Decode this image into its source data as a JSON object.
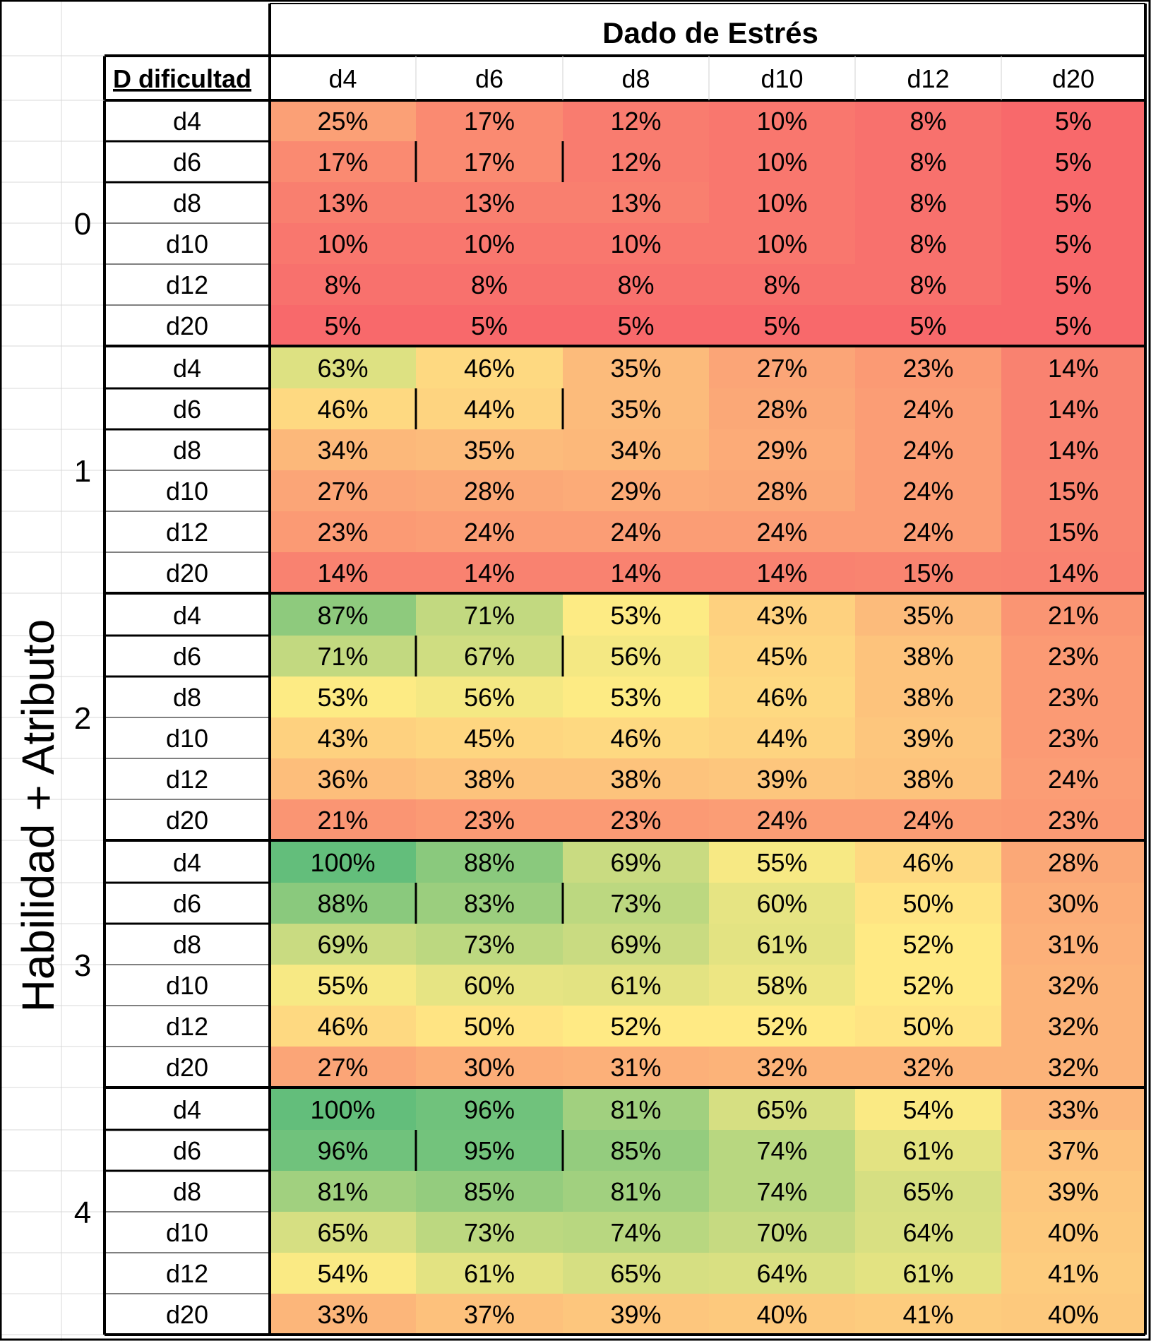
{
  "header": {
    "title": "Dado de Estrés",
    "corner_label": "D dificultad",
    "side_label": "Habilidad + Atributo"
  },
  "columns": [
    "d4",
    "d6",
    "d8",
    "d10",
    "d12",
    "d20"
  ],
  "groups": [
    {
      "label": "0",
      "rows": [
        {
          "label": "d4",
          "values": [
            "25%",
            "17%",
            "12%",
            "10%",
            "8%",
            "5%"
          ]
        },
        {
          "label": "d6",
          "values": [
            "17%",
            "17%",
            "12%",
            "10%",
            "8%",
            "5%"
          ]
        },
        {
          "label": "d8",
          "values": [
            "13%",
            "13%",
            "13%",
            "10%",
            "8%",
            "5%"
          ]
        },
        {
          "label": "d10",
          "values": [
            "10%",
            "10%",
            "10%",
            "10%",
            "8%",
            "5%"
          ]
        },
        {
          "label": "d12",
          "values": [
            "8%",
            "8%",
            "8%",
            "8%",
            "8%",
            "5%"
          ]
        },
        {
          "label": "d20",
          "values": [
            "5%",
            "5%",
            "5%",
            "5%",
            "5%",
            "5%"
          ]
        }
      ]
    },
    {
      "label": "1",
      "rows": [
        {
          "label": "d4",
          "values": [
            "63%",
            "46%",
            "35%",
            "27%",
            "23%",
            "14%"
          ]
        },
        {
          "label": "d6",
          "values": [
            "46%",
            "44%",
            "35%",
            "28%",
            "24%",
            "14%"
          ]
        },
        {
          "label": "d8",
          "values": [
            "34%",
            "35%",
            "34%",
            "29%",
            "24%",
            "14%"
          ]
        },
        {
          "label": "d10",
          "values": [
            "27%",
            "28%",
            "29%",
            "28%",
            "24%",
            "15%"
          ]
        },
        {
          "label": "d12",
          "values": [
            "23%",
            "24%",
            "24%",
            "24%",
            "24%",
            "15%"
          ]
        },
        {
          "label": "d20",
          "values": [
            "14%",
            "14%",
            "14%",
            "14%",
            "15%",
            "14%"
          ]
        }
      ]
    },
    {
      "label": "2",
      "rows": [
        {
          "label": "d4",
          "values": [
            "87%",
            "71%",
            "53%",
            "43%",
            "35%",
            "21%"
          ]
        },
        {
          "label": "d6",
          "values": [
            "71%",
            "67%",
            "56%",
            "45%",
            "38%",
            "23%"
          ]
        },
        {
          "label": "d8",
          "values": [
            "53%",
            "56%",
            "53%",
            "46%",
            "38%",
            "23%"
          ]
        },
        {
          "label": "d10",
          "values": [
            "43%",
            "45%",
            "46%",
            "44%",
            "39%",
            "23%"
          ]
        },
        {
          "label": "d12",
          "values": [
            "36%",
            "38%",
            "38%",
            "39%",
            "38%",
            "24%"
          ]
        },
        {
          "label": "d20",
          "values": [
            "21%",
            "23%",
            "23%",
            "24%",
            "24%",
            "23%"
          ]
        }
      ]
    },
    {
      "label": "3",
      "rows": [
        {
          "label": "d4",
          "values": [
            "100%",
            "88%",
            "69%",
            "55%",
            "46%",
            "28%"
          ]
        },
        {
          "label": "d6",
          "values": [
            "88%",
            "83%",
            "73%",
            "60%",
            "50%",
            "30%"
          ]
        },
        {
          "label": "d8",
          "values": [
            "69%",
            "73%",
            "69%",
            "61%",
            "52%",
            "31%"
          ]
        },
        {
          "label": "d10",
          "values": [
            "55%",
            "60%",
            "61%",
            "58%",
            "52%",
            "32%"
          ]
        },
        {
          "label": "d12",
          "values": [
            "46%",
            "50%",
            "52%",
            "52%",
            "50%",
            "32%"
          ]
        },
        {
          "label": "d20",
          "values": [
            "27%",
            "30%",
            "31%",
            "32%",
            "32%",
            "32%"
          ]
        }
      ]
    },
    {
      "label": "4",
      "rows": [
        {
          "label": "d4",
          "values": [
            "100%",
            "96%",
            "81%",
            "65%",
            "54%",
            "33%"
          ]
        },
        {
          "label": "d6",
          "values": [
            "96%",
            "95%",
            "85%",
            "74%",
            "61%",
            "37%"
          ]
        },
        {
          "label": "d8",
          "values": [
            "81%",
            "85%",
            "81%",
            "74%",
            "65%",
            "39%"
          ]
        },
        {
          "label": "d10",
          "values": [
            "65%",
            "73%",
            "74%",
            "70%",
            "64%",
            "40%"
          ]
        },
        {
          "label": "d12",
          "values": [
            "54%",
            "61%",
            "65%",
            "64%",
            "61%",
            "41%"
          ]
        },
        {
          "label": "d20",
          "values": [
            "33%",
            "37%",
            "39%",
            "40%",
            "41%",
            "40%"
          ]
        }
      ]
    }
  ],
  "color_scale": {
    "low": "#f8696b",
    "mid": "#ffeb84",
    "high": "#63be7b"
  }
}
